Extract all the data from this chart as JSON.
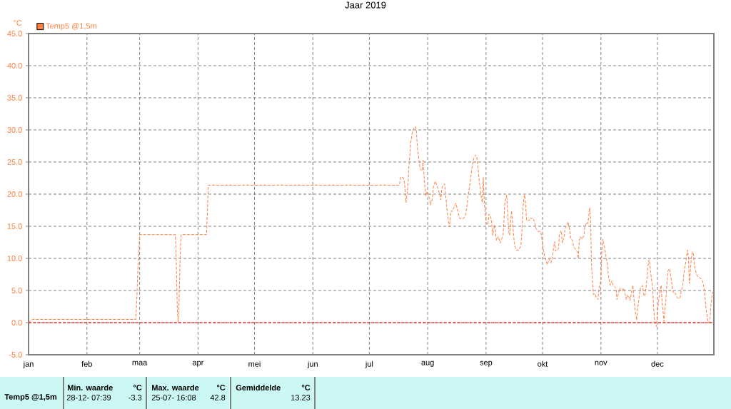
{
  "chart_data": {
    "type": "line",
    "title": "Jaar 2019",
    "ylabel": "°C",
    "x": [
      "2019-01-01",
      "2019-01-03",
      "2019-02-27",
      "2019-02-27T12:00",
      "2019-02-28",
      "2019-02-28T12:00",
      "2019-03-01",
      "2019-03-20",
      "2019-03-20T12:00",
      "2019-03-21",
      "2019-03-21T12:00",
      "2019-03-22",
      "2019-03-22T12:00",
      "2019-03-23",
      "2019-04-05T12:00",
      "2019-04-06",
      "2019-04-06T12:00",
      "2019-07-17",
      "2019-07-17T12:00",
      "2019-07-19",
      "2019-07-19T12:00",
      "2019-07-20",
      "2019-07-20T12:00",
      "2019-07-21T12:00",
      "2019-07-22",
      "2019-07-22T12:00",
      "2019-07-23",
      "2019-07-24",
      "2019-07-25",
      "2019-07-25T12:00",
      "2019-07-26",
      "2019-07-26T12:00",
      "2019-07-27T12:00",
      "2019-07-28",
      "2019-07-29",
      "2019-07-29T12:00",
      "2019-07-30",
      "2019-07-30T12:00",
      "2019-07-31",
      "2019-07-31T12:00",
      "2019-08-01T12:00",
      "2019-08-02",
      "2019-08-02T12:00",
      "2019-08-03T12:00",
      "2019-08-04",
      "2019-08-05",
      "2019-08-06",
      "2019-08-06T12:00",
      "2019-08-07T12:00",
      "2019-08-08",
      "2019-08-08T12:00",
      "2019-08-09",
      "2019-08-10",
      "2019-08-10T12:00",
      "2019-08-11",
      "2019-08-11T12:00",
      "2019-08-12T12:00",
      "2019-08-13T12:00",
      "2019-08-14",
      "2019-08-15",
      "2019-08-16",
      "2019-08-17",
      "2019-08-18",
      "2019-08-20",
      "2019-08-21",
      "2019-08-22",
      "2019-08-22T12:00",
      "2019-08-23T12:00",
      "2019-08-24T12:00",
      "2019-08-25T12:00",
      "2019-08-26T12:00",
      "2019-08-27",
      "2019-08-27T12:00",
      "2019-08-28T12:00",
      "2019-08-29",
      "2019-08-29T12:00",
      "2019-08-30",
      "2019-08-30T12:00",
      "2019-08-31",
      "2019-08-31T12:00",
      "2019-09-01",
      "2019-09-02",
      "2019-09-02T12:00",
      "2019-09-03T12:00",
      "2019-09-04",
      "2019-09-04T12:00",
      "2019-09-05T12:00",
      "2019-09-06",
      "2019-09-06T12:00",
      "2019-09-07T12:00",
      "2019-09-08T12:00",
      "2019-09-09",
      "2019-09-10",
      "2019-09-10T12:00",
      "2019-09-11",
      "2019-09-12",
      "2019-09-12T12:00",
      "2019-09-13",
      "2019-09-13T12:00",
      "2019-09-14",
      "2019-09-14T12:00",
      "2019-09-15",
      "2019-09-16",
      "2019-09-17",
      "2019-09-18T12:00",
      "2019-09-19T12:00",
      "2019-09-20",
      "2019-09-20T12:00",
      "2019-09-21",
      "2019-09-21T12:00",
      "2019-09-22",
      "2019-09-22T12:00",
      "2019-09-24",
      "2019-09-24T12:00",
      "2019-09-25T12:00",
      "2019-09-26",
      "2019-09-27",
      "2019-09-27T12:00",
      "2019-09-28T12:00",
      "2019-09-30",
      "2019-10-01",
      "2019-10-02",
      "2019-10-03",
      "2019-10-03T12:00",
      "2019-10-04T12:00",
      "2019-10-05T12:00",
      "2019-10-06",
      "2019-10-07",
      "2019-10-07T12:00",
      "2019-10-08",
      "2019-10-09T12:00",
      "2019-10-10",
      "2019-10-11",
      "2019-10-11T12:00",
      "2019-10-12T12:00",
      "2019-10-13",
      "2019-10-14",
      "2019-10-14T12:00",
      "2019-10-15T12:00",
      "2019-10-16",
      "2019-10-17",
      "2019-10-17T12:00",
      "2019-10-18T12:00",
      "2019-10-19T12:00",
      "2019-10-20",
      "2019-10-20T12:00",
      "2019-10-21",
      "2019-10-22",
      "2019-10-23",
      "2019-10-23T12:00",
      "2019-10-24T12:00",
      "2019-10-25",
      "2019-10-25T12:00",
      "2019-10-26",
      "2019-10-26T12:00",
      "2019-10-27",
      "2019-10-27T12:00",
      "2019-10-28",
      "2019-10-29",
      "2019-10-29T12:00",
      "2019-10-30T12:00",
      "2019-10-31",
      "2019-11-01",
      "2019-11-01T12:00",
      "2019-11-02",
      "2019-11-03",
      "2019-11-03T12:00",
      "2019-11-04T12:00",
      "2019-11-05",
      "2019-11-06",
      "2019-11-06T12:00",
      "2019-11-07",
      "2019-11-07T12:00",
      "2019-11-09",
      "2019-11-09T12:00",
      "2019-11-10T12:00",
      "2019-11-11",
      "2019-11-11T12:00",
      "2019-11-12T12:00",
      "2019-11-13",
      "2019-11-13T12:00",
      "2019-11-14T12:00",
      "2019-11-15",
      "2019-11-16",
      "2019-11-16T12:00",
      "2019-11-17T12:00",
      "2019-11-18",
      "2019-11-18T12:00",
      "2019-11-19",
      "2019-11-19T12:00",
      "2019-11-20",
      "2019-11-20T12:00",
      "2019-11-21",
      "2019-11-21T12:00",
      "2019-11-22",
      "2019-11-23",
      "2019-11-23T12:00",
      "2019-11-24",
      "2019-11-24T12:00",
      "2019-11-25T12:00",
      "2019-11-26",
      "2019-11-26T12:00",
      "2019-11-27",
      "2019-11-27T12:00",
      "2019-11-28T12:00",
      "2019-11-29",
      "2019-11-29T12:00",
      "2019-11-30T12:00",
      "2019-12-01",
      "2019-12-02",
      "2019-12-03",
      "2019-12-03T12:00",
      "2019-12-04",
      "2019-12-04T12:00",
      "2019-12-05T12:00",
      "2019-12-06",
      "2019-12-06T12:00",
      "2019-12-07T12:00",
      "2019-12-08",
      "2019-12-08T12:00",
      "2019-12-09",
      "2019-12-10",
      "2019-12-10T12:00",
      "2019-12-11T12:00",
      "2019-12-12T12:00",
      "2019-12-13",
      "2019-12-13T12:00",
      "2019-12-14T12:00",
      "2019-12-15",
      "2019-12-15T12:00",
      "2019-12-16T12:00",
      "2019-12-17",
      "2019-12-17T12:00",
      "2019-12-18",
      "2019-12-19",
      "2019-12-19T12:00",
      "2019-12-20",
      "2019-12-20T12:00",
      "2019-12-21",
      "2019-12-22",
      "2019-12-22T12:00",
      "2019-12-24",
      "2019-12-25",
      "2019-12-25T12:00",
      "2019-12-26",
      "2019-12-26T12:00",
      "2019-12-27",
      "2019-12-28",
      "2019-12-28T12:00",
      "2019-12-29",
      "2019-12-29T12:00",
      "2019-12-30",
      "2019-12-30T12:00",
      "2019-12-31"
    ],
    "series": [
      {
        "name": "Temp5 @1,5m",
        "color": "#ff8040",
        "values": [
          0.0,
          0.5,
          0.5,
          3.7,
          8.0,
          10.2,
          13.7,
          13.7,
          9.0,
          2.0,
          0.0,
          4.0,
          10.0,
          13.7,
          13.7,
          17.5,
          21.4,
          21.4,
          22.6,
          22.6,
          22.1,
          20.8,
          18.7,
          21.3,
          24.3,
          26.0,
          28.0,
          29.9,
          30.4,
          30.5,
          29.9,
          27.3,
          25.0,
          23.9,
          23.6,
          25.3,
          23.2,
          21.0,
          19.7,
          20.4,
          19.7,
          19.3,
          18.3,
          19.3,
          21.1,
          22.0,
          21.3,
          20.8,
          19.9,
          19.1,
          20.8,
          21.3,
          21.6,
          19.9,
          18.4,
          16.9,
          14.9,
          17.4,
          17.3,
          18.0,
          18.6,
          17.3,
          16.2,
          16.2,
          16.7,
          18.4,
          19.9,
          21.7,
          24.1,
          25.6,
          26.1,
          26.0,
          24.7,
          21.7,
          20.6,
          19.5,
          18.7,
          22.6,
          19.1,
          17.3,
          15.6,
          15.2,
          16.9,
          16.5,
          15.4,
          13.6,
          15.2,
          14.3,
          12.8,
          13.4,
          12.4,
          12.8,
          13.6,
          15.8,
          18.7,
          19.9,
          16.9,
          14.3,
          13.6,
          15.4,
          17.4,
          15.8,
          12.4,
          11.3,
          11.3,
          12.1,
          13.9,
          17.3,
          19.1,
          19.9,
          18.4,
          15.9,
          15.9,
          16.3,
          16.2,
          16.3,
          15.4,
          14.7,
          14.2,
          14.2,
          12.3,
          10.4,
          9.5,
          9.0,
          9.9,
          9.3,
          9.9,
          11.9,
          12.6,
          11.1,
          11.5,
          13.9,
          14.3,
          12.4,
          13.4,
          14.7,
          15.2,
          15.7,
          14.3,
          13.0,
          12.8,
          11.8,
          11.4,
          11.0,
          10.0,
          12.8,
          13.4,
          13.0,
          13.6,
          15.0,
          15.6,
          15.4,
          16.3,
          17.9,
          16.5,
          9.1,
          6.5,
          4.4,
          4.5,
          3.9,
          3.6,
          5.4,
          6.5,
          11.3,
          13.0,
          11.7,
          10.6,
          9.1,
          7.3,
          5.8,
          6.3,
          6.5,
          5.8,
          5.4,
          3.6,
          4.7,
          5.4,
          5.0,
          5.0,
          5.4,
          4.9,
          3.6,
          4.3,
          3.9,
          3.4,
          5.0,
          5.8,
          3.9,
          2.4,
          1.3,
          0.4,
          2.1,
          3.2,
          4.5,
          5.4,
          5.8,
          4.9,
          4.1,
          4.3,
          6.9,
          8.7,
          9.8,
          9.1,
          7.6,
          5.4,
          2.4,
          0.2,
          -0.6,
          1.5,
          4.3,
          5.8,
          3.2,
          1.9,
          0.2,
          3.6,
          5.8,
          8.0,
          8.4,
          7.4,
          6.5,
          5.0,
          4.5,
          4.6,
          3.9,
          3.7,
          3.9,
          4.7,
          5.8,
          7.3,
          8.4,
          10.2,
          11.3,
          10.2,
          6.1,
          9.9,
          10.8,
          11.0,
          9.5,
          8.4,
          7.4,
          7.1,
          6.9,
          6.5,
          5.8,
          5.0,
          3.2,
          1.7,
          0.0,
          0.0,
          0.8,
          2.8,
          4.3,
          4.7,
          4.3
        ]
      }
    ],
    "xlim": [
      "2019-01-01",
      "2019-12-31"
    ],
    "xticks": [
      {
        "value": "2019-01-01",
        "label": "jan"
      },
      {
        "value": "2019-02-01",
        "label": "feb"
      },
      {
        "value": "2019-03-01",
        "label": "maa"
      },
      {
        "value": "2019-04-01",
        "label": "apr"
      },
      {
        "value": "2019-05-01",
        "label": "mei"
      },
      {
        "value": "2019-06-01",
        "label": "jun"
      },
      {
        "value": "2019-07-01",
        "label": "jul"
      },
      {
        "value": "2019-08-01",
        "label": "aug"
      },
      {
        "value": "2019-09-01",
        "label": "sep"
      },
      {
        "value": "2019-10-01",
        "label": "okt"
      },
      {
        "value": "2019-11-01",
        "label": "nov"
      },
      {
        "value": "2019-12-01",
        "label": "dec"
      }
    ],
    "ylim": [
      -5,
      45
    ],
    "yticks": [
      {
        "value": -5,
        "label": "-5.0"
      },
      {
        "value": 0,
        "label": "0.0"
      },
      {
        "value": 5,
        "label": "5.0"
      },
      {
        "value": 10,
        "label": "10.0"
      },
      {
        "value": 15,
        "label": "15.0"
      },
      {
        "value": 20,
        "label": "20.0"
      },
      {
        "value": 25,
        "label": "25.0"
      },
      {
        "value": 30,
        "label": "30.0"
      },
      {
        "value": 35,
        "label": "35.0"
      },
      {
        "value": 40,
        "label": "40.0"
      },
      {
        "value": 45,
        "label": "45.0"
      }
    ],
    "grid": true,
    "legend": "top left",
    "line_style": "dashed",
    "ref_lines": [
      {
        "axis": "y",
        "value": 0,
        "color": "#ff0000",
        "line_style": "dashed"
      }
    ],
    "annotations": [
      "Temp5 @1,5m",
      "Min. waarde",
      "°C",
      "28-12- 07:39",
      "-3.3",
      "Max. waarde",
      "°C",
      "25-07- 16:08",
      "42.8",
      "Gemiddelde",
      "°C",
      "13.23"
    ]
  }
}
